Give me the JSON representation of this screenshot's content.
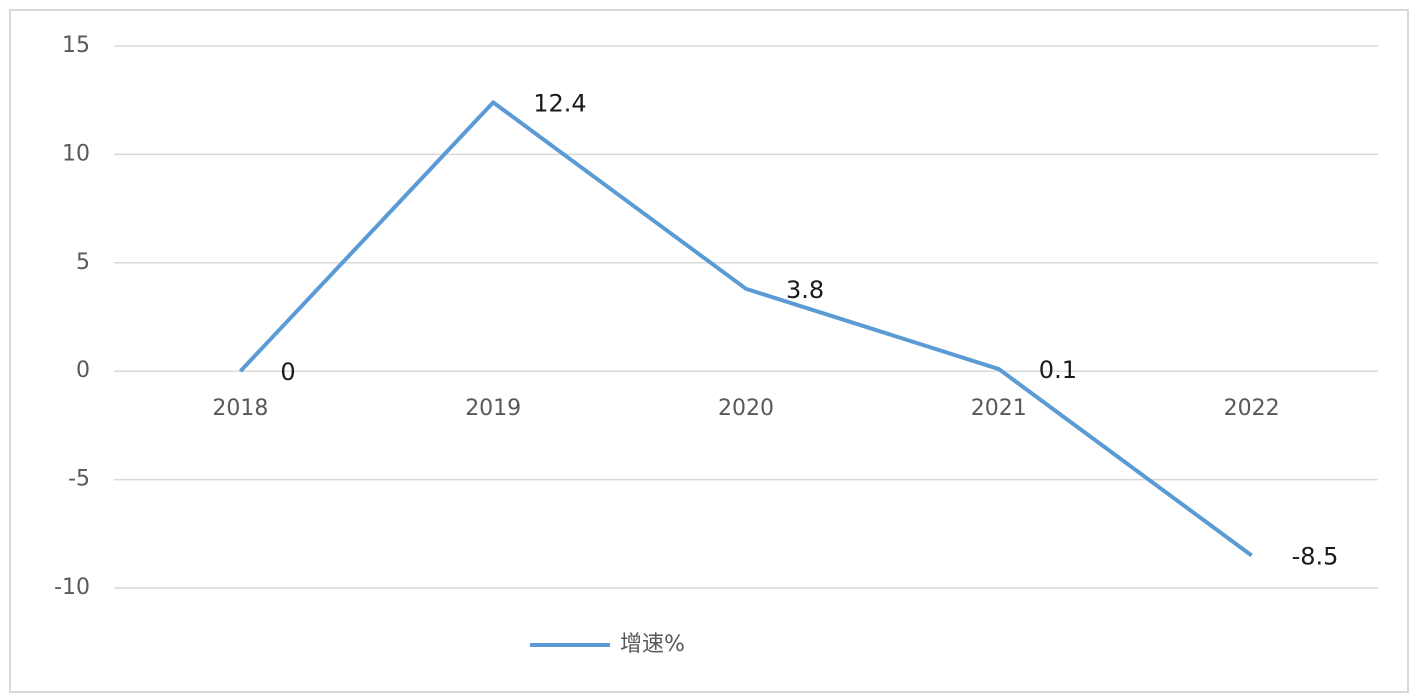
{
  "chart_data": {
    "type": "line",
    "categories": [
      "2018",
      "2019",
      "2020",
      "2021",
      "2022"
    ],
    "series": [
      {
        "name": "增速%",
        "color": "#5b9bd5",
        "values": [
          0,
          12.4,
          3.8,
          0.1,
          -8.5
        ]
      }
    ],
    "ylim": [
      -10,
      15
    ],
    "yticks": [
      -10,
      -5,
      0,
      5,
      10,
      15
    ],
    "grid": true,
    "legend": "bottom"
  }
}
